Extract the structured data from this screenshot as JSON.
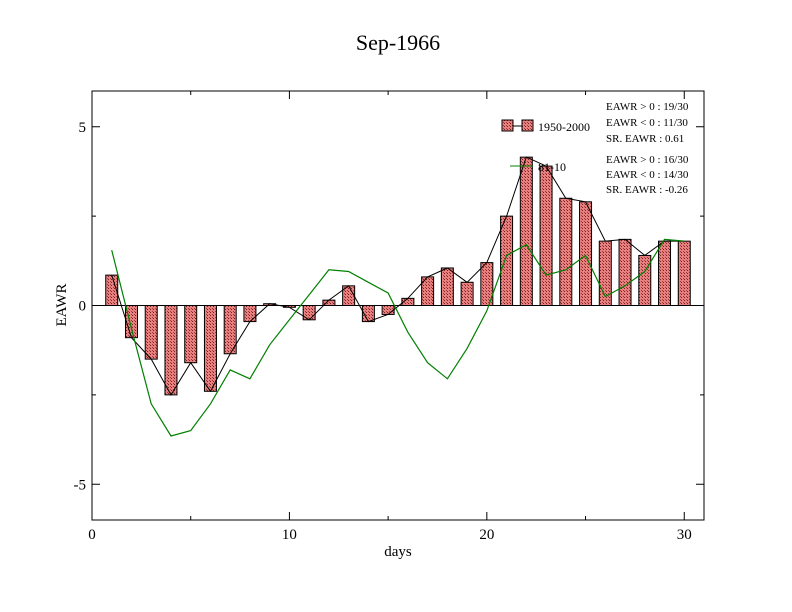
{
  "chart_data": {
    "type": "bar",
    "title": "Sep-1966",
    "xlabel": "days",
    "ylabel": "EAWR",
    "xlim": [
      0,
      31
    ],
    "ylim": [
      -6,
      6
    ],
    "x_ticks": [
      0,
      10,
      20,
      30
    ],
    "y_ticks": [
      -5,
      0,
      5
    ],
    "x": [
      1,
      2,
      3,
      4,
      5,
      6,
      7,
      8,
      9,
      10,
      11,
      12,
      13,
      14,
      15,
      16,
      17,
      18,
      19,
      20,
      21,
      22,
      23,
      24,
      25,
      26,
      27,
      28,
      29,
      30
    ],
    "series": [
      {
        "name": "1950-2000",
        "kind": "bar+line",
        "color": "#e07070",
        "values": [
          0.85,
          -0.9,
          -1.5,
          -2.5,
          -1.6,
          -2.4,
          -1.35,
          -0.45,
          0.05,
          -0.05,
          -0.4,
          0.15,
          0.55,
          -0.45,
          -0.25,
          0.2,
          0.8,
          1.05,
          0.65,
          1.2,
          2.5,
          4.15,
          3.9,
          3.0,
          2.9,
          1.8,
          1.85,
          1.4,
          1.8,
          1.8
        ]
      },
      {
        "name": "81-10",
        "kind": "line",
        "color": "#008000",
        "values": [
          1.55,
          -0.65,
          -2.75,
          -3.65,
          -3.5,
          -2.75,
          -1.8,
          -2.05,
          -1.1,
          -0.4,
          0.3,
          1.0,
          0.95,
          0.65,
          0.35,
          -0.75,
          -1.6,
          -2.05,
          -1.2,
          -0.15,
          1.4,
          1.7,
          0.85,
          1.0,
          1.4,
          0.25,
          0.55,
          0.95,
          1.85,
          1.8
        ]
      }
    ],
    "legend": {
      "placement": "top-right"
    },
    "stats": [
      [
        "EAWR > 0 : 19/30",
        "EAWR < 0 : 11/30",
        "SR. EAWR :  0.61"
      ],
      [
        "EAWR > 0 : 16/30",
        "EAWR < 0 : 14/30",
        "SR. EAWR : -0.26"
      ]
    ],
    "grid": false
  }
}
